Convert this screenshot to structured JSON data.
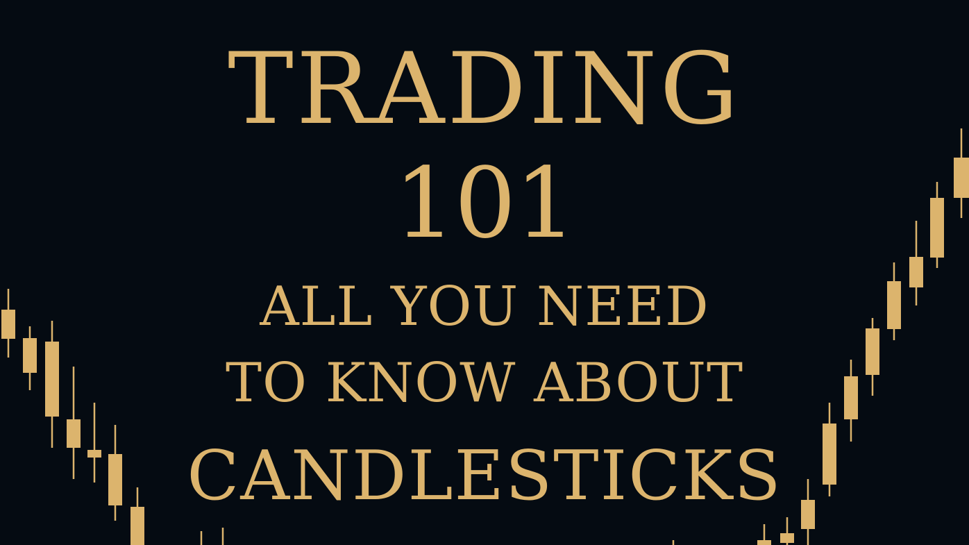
{
  "colors": {
    "background": "#050b12",
    "gold": "#dcb46d"
  },
  "title": {
    "line1": "TRADING",
    "line2": "101",
    "line3": "ALL YOU NEED",
    "line4": "TO KNOW ABOUT",
    "line5": "CANDLESTICKS"
  }
}
